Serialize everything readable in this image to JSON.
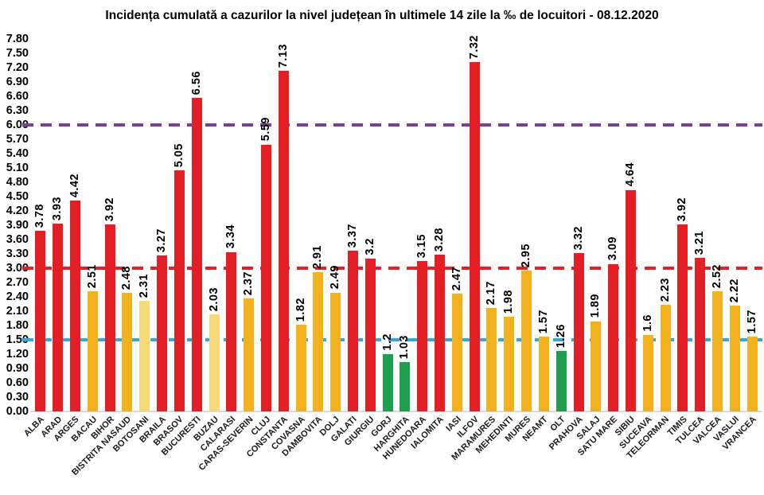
{
  "page": {
    "background": "#ffffff"
  },
  "chart_data": {
    "type": "bar",
    "title": "Incidența cumulată a cazurilor la nivel județean în ultimele 14 zile la ‰ de locuitori - 08.12.2020",
    "xlabel": "",
    "ylabel": "",
    "ylim": [
      0,
      7.8
    ],
    "ytick_step": 0.3,
    "grid": false,
    "legend": false,
    "y_ticks": [
      "0.00",
      "0.30",
      "0.60",
      "0.90",
      "1.20",
      "1.50",
      "1.80",
      "2.10",
      "2.40",
      "2.70",
      "3.00",
      "3.30",
      "3.60",
      "3.90",
      "4.20",
      "4.50",
      "4.80",
      "5.10",
      "5.40",
      "5.70",
      "6.00",
      "6.30",
      "6.60",
      "6.90",
      "7.20",
      "7.50",
      "7.80"
    ],
    "categories": [
      "ALBA",
      "ARAD",
      "ARGES",
      "BACAU",
      "BIHOR",
      "BISTRITA NASAUD",
      "BOTOSANI",
      "BRAILA",
      "BRASOV",
      "BUCURESTI",
      "BUZAU",
      "CALARASI",
      "CARAS-SEVERIN",
      "CLUJ",
      "CONSTANTA",
      "COVASNA",
      "DAMBOVITA",
      "DOLJ",
      "GALATI",
      "GIURGIU",
      "GORJ",
      "HARGHITA",
      "HUNEDOARA",
      "IALOMITA",
      "IASI",
      "ILFOV",
      "MARAMURES",
      "MEHEDINTI",
      "MURES",
      "NEAMT",
      "OLT",
      "PRAHOVA",
      "SALAJ",
      "SATU MARE",
      "SIBIU",
      "SUCEAVA",
      "TELEORMAN",
      "TIMIS",
      "TULCEA",
      "VALCEA",
      "VASLUI",
      "VRANCEA"
    ],
    "values": [
      3.78,
      3.93,
      4.42,
      2.51,
      3.92,
      2.48,
      2.31,
      3.27,
      5.05,
      6.56,
      2.03,
      3.34,
      2.37,
      5.59,
      7.13,
      1.82,
      2.91,
      2.49,
      3.37,
      3.2,
      1.2,
      1.03,
      3.15,
      3.28,
      2.47,
      7.32,
      2.17,
      1.98,
      2.95,
      1.57,
      1.26,
      3.32,
      1.89,
      3.09,
      4.64,
      1.6,
      2.23,
      3.92,
      3.21,
      2.52,
      2.22,
      1.57
    ],
    "value_labels": [
      "3.78",
      "3.93",
      "4.42",
      "2.51",
      "3.92",
      "2.48",
      "2.31",
      "3.27",
      "5.05",
      "6.56",
      "2.03",
      "3.34",
      "2.37",
      "5.59",
      "7.13",
      "1.82",
      "2.91",
      "2.49",
      "3.37",
      "3.2",
      "1.2",
      "1.03",
      "3.15",
      "3.28",
      "2.47",
      "7.32",
      "2.17",
      "1.98",
      "2.95",
      "1.57",
      "1.26",
      "3.32",
      "1.89",
      "3.09",
      "4.64",
      "1.6",
      "2.23",
      "3.92",
      "3.21",
      "2.52",
      "2.22",
      "1.57"
    ],
    "bar_colors": [
      "red",
      "red",
      "red",
      "gold",
      "red",
      "gold",
      "light",
      "red",
      "red",
      "red",
      "light",
      "red",
      "gold",
      "red",
      "red",
      "gold",
      "gold",
      "gold",
      "red",
      "red",
      "green",
      "green",
      "red",
      "red",
      "gold",
      "red",
      "gold",
      "gold",
      "gold",
      "gold",
      "green",
      "red",
      "gold",
      "red",
      "red",
      "gold",
      "gold",
      "red",
      "red",
      "gold",
      "gold",
      "gold"
    ],
    "palette": {
      "red": "#e31e25",
      "gold": "#f3b11d",
      "light": "#f8d977",
      "green": "#1ca04c"
    },
    "reference_lines": [
      {
        "name": "upper-threshold",
        "value": 6.0,
        "color": "#7b3f9a"
      },
      {
        "name": "middle-threshold",
        "value": 3.0,
        "color": "#ec1c24"
      },
      {
        "name": "lower-threshold",
        "value": 1.5,
        "color": "#2aabe2"
      }
    ],
    "text_color": "#000000",
    "axis_line_color": "#d9d9d9"
  }
}
